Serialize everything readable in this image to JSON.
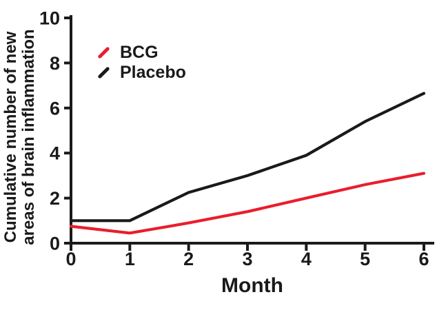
{
  "figure": {
    "background_color": "#ffffff",
    "text_color": "#1a1a1a",
    "accent_red": "#ea1d2d"
  },
  "chart_data": {
    "type": "line",
    "title": "",
    "xlabel": "Month",
    "ylabel_lines": [
      "Cumulative number of new",
      "areas of brain inflammation"
    ],
    "x": [
      0,
      1,
      2,
      3,
      4,
      5,
      6
    ],
    "series": [
      {
        "name": "BCG",
        "color": "#ea1d2d",
        "values": [
          0.75,
          0.45,
          0.9,
          1.4,
          2.0,
          2.6,
          3.1
        ]
      },
      {
        "name": "Placebo",
        "color": "#1a1a1a",
        "values": [
          1.0,
          1.0,
          2.25,
          3.0,
          3.9,
          5.4,
          6.65
        ]
      }
    ],
    "xlim": [
      0,
      6
    ],
    "ylim": [
      0,
      10
    ],
    "xticks": [
      0,
      1,
      2,
      3,
      4,
      5,
      6
    ],
    "yticks": [
      0,
      2,
      4,
      6,
      8,
      10
    ],
    "grid": false,
    "legend": {
      "position": "top-left-inside",
      "entries": [
        "BCG",
        "Placebo"
      ]
    }
  }
}
